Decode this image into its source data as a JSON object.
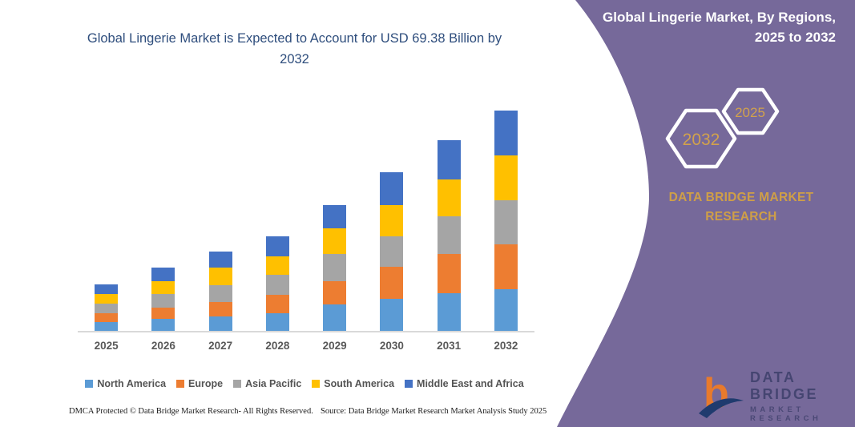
{
  "chart": {
    "title": "Global Lingerie Market is Expected to Account for USD 69.38 Billion by 2032"
  },
  "chart_data": {
    "type": "bar",
    "stacked": true,
    "title": "Global Lingerie Market is Expected to Account for USD 69.38 Billion by 2032",
    "unit": "USD Billion",
    "categories": [
      "2025",
      "2026",
      "2027",
      "2028",
      "2029",
      "2030",
      "2031",
      "2032"
    ],
    "series": [
      {
        "name": "North America",
        "color": "#5B9BD5",
        "values": [
          2.9,
          4.0,
          4.9,
          5.9,
          8.6,
          10.3,
          12.0,
          13.3
        ]
      },
      {
        "name": "Europe",
        "color": "#ED7D31",
        "values": [
          3.0,
          3.5,
          4.4,
          5.7,
          7.3,
          10.1,
          12.3,
          14.1
        ]
      },
      {
        "name": "Asia Pacific",
        "color": "#A5A5A5",
        "values": [
          2.9,
          4.3,
          5.2,
          6.2,
          8.4,
          9.6,
          12.0,
          13.9
        ]
      },
      {
        "name": "South America",
        "color": "#FFC000",
        "values": [
          3.1,
          4.0,
          5.7,
          5.9,
          8.2,
          9.6,
          11.5,
          14.0
        ]
      },
      {
        "name": "Middle East and Africa",
        "color": "#4472C4",
        "values": [
          2.9,
          4.2,
          5.0,
          6.3,
          7.3,
          10.4,
          12.2,
          14.08
        ]
      }
    ],
    "totals_by_year": [
      14.8,
      20.0,
      25.2,
      30.0,
      39.8,
      50.0,
      60.0,
      69.38
    ],
    "ylim": [
      0,
      69.38
    ],
    "grid": false,
    "axis_labels_shown": "x-only",
    "legend_position": "bottom"
  },
  "side_panel": {
    "heading": "Global Lingerie Market, By Regions, 2025 to 2032",
    "hexagons": [
      {
        "label": "2032"
      },
      {
        "label": "2025"
      }
    ],
    "brand_line1": "DATA BRIDGE MARKET",
    "brand_line2": "RESEARCH",
    "colors": {
      "panel": "#76699A",
      "gold": "#CF9F47",
      "hex_outline": "#FFFFFF"
    }
  },
  "logo": {
    "line1": "DATA BRIDGE",
    "line2": "MARKET RESEARCH"
  },
  "footer": {
    "dmca": "DMCA Protected © Data Bridge Market Research-  All Rights Reserved.",
    "source": "Source: Data Bridge Market Research  Market Analysis Study 2025"
  },
  "colors": {
    "title_text": "#2F4E7D",
    "axis_text": "#595959",
    "axis_line": "#D9D9D9"
  }
}
